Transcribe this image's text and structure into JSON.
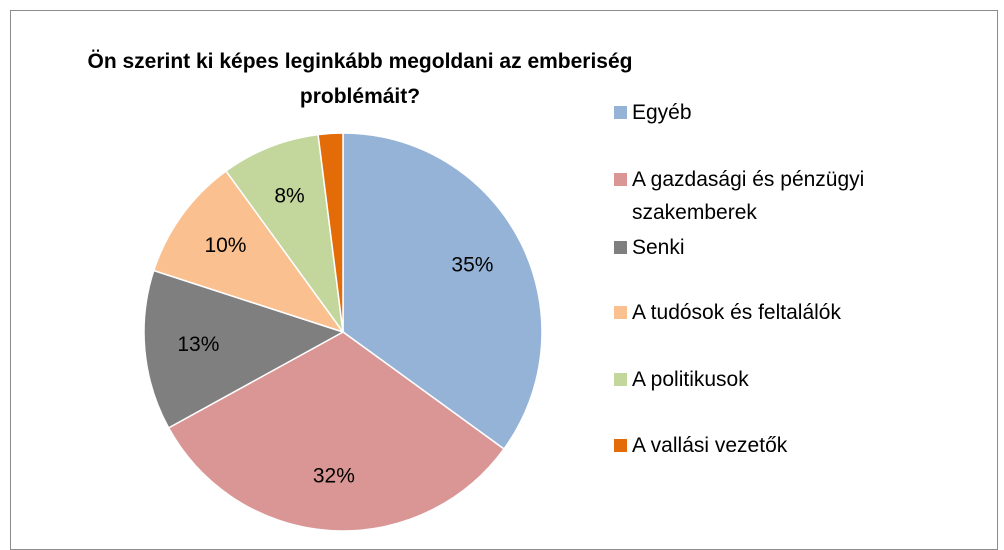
{
  "chart_data": {
    "type": "pie",
    "title": "Ön szerint ki képes leginkább megoldani az emberiség problémáit?",
    "categories": [
      "Egyéb",
      "A gazdasági és pénzügyi szakemberek",
      "Senki",
      "A tudósok és feltalálók",
      "A politikusok",
      "A vallási vezetők"
    ],
    "values": [
      35,
      32,
      13,
      10,
      8,
      2
    ],
    "value_labels": [
      "35%",
      "32%",
      "13%",
      "10%",
      "8%",
      null
    ],
    "colors": [
      "#95b3d7",
      "#d99694",
      "#7f7f7f",
      "#fac090",
      "#c3d69b",
      "#e36c09"
    ],
    "legend": "right"
  }
}
